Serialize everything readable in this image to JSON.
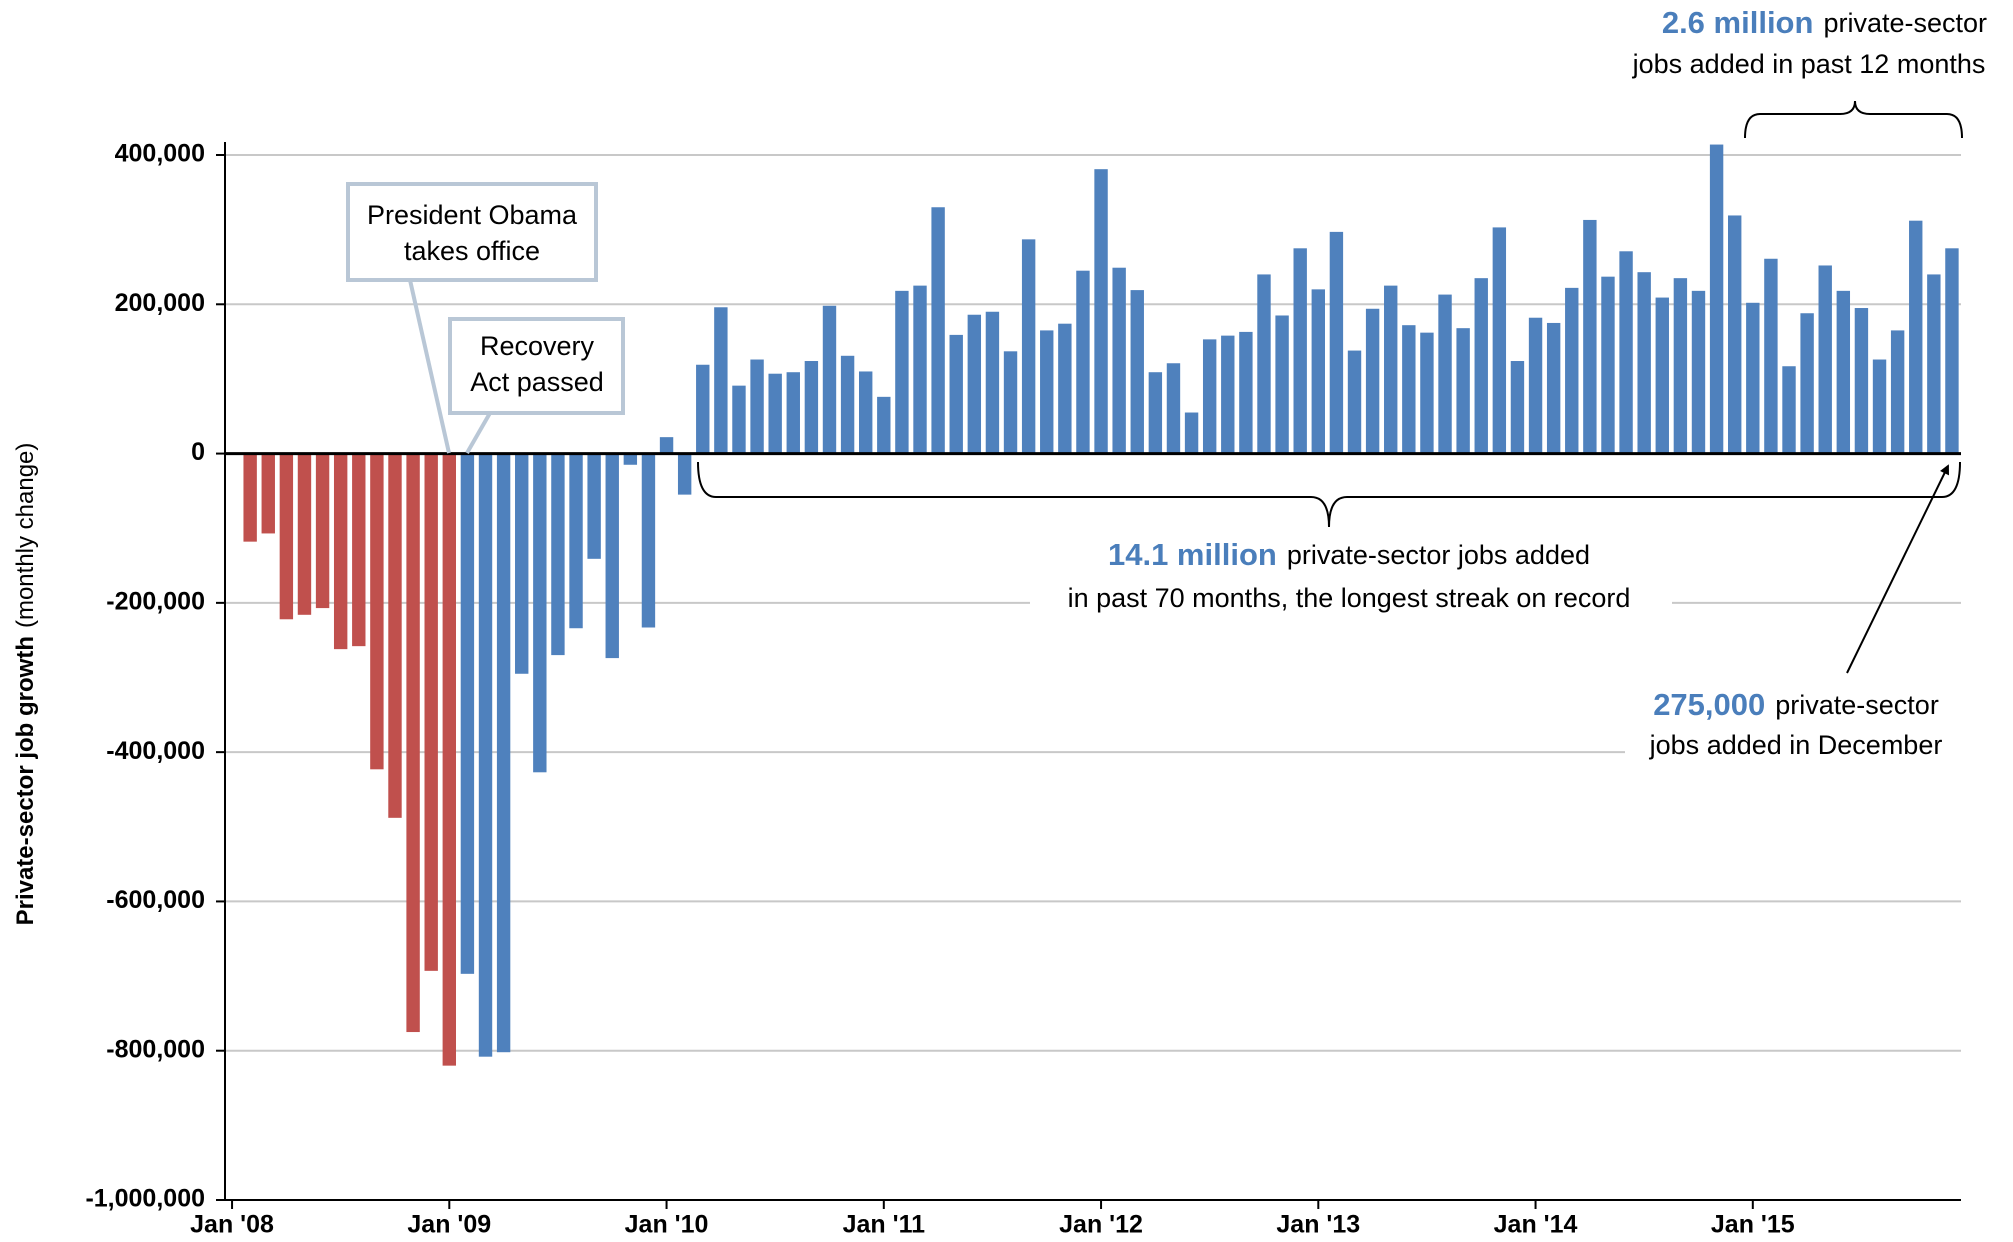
{
  "chart_data": {
    "type": "bar",
    "y_label": "Private-sector job growth",
    "y_label_note": "(monthly change)",
    "categories": [
      "Jan '08",
      null,
      null,
      null,
      null,
      null,
      null,
      null,
      null,
      null,
      null,
      null,
      "Jan '09",
      null,
      null,
      null,
      null,
      null,
      null,
      null,
      null,
      null,
      null,
      null,
      "Jan '10",
      null,
      null,
      null,
      null,
      null,
      null,
      null,
      null,
      null,
      null,
      null,
      "Jan '11",
      null,
      null,
      null,
      null,
      null,
      null,
      null,
      null,
      null,
      null,
      null,
      "Jan '12",
      null,
      null,
      null,
      null,
      null,
      null,
      null,
      null,
      null,
      null,
      null,
      "Jan '13",
      null,
      null,
      null,
      null,
      null,
      null,
      null,
      null,
      null,
      null,
      null,
      "Jan '14",
      null,
      null,
      null,
      null,
      null,
      null,
      null,
      null,
      null,
      null,
      null,
      "Jan '15",
      null,
      null,
      null,
      null,
      null,
      null,
      null,
      null,
      null,
      null,
      null
    ],
    "values": [
      null,
      -118000,
      -107000,
      -222000,
      -216000,
      -207000,
      -262000,
      -258000,
      -423000,
      -488000,
      -775000,
      -693000,
      -820000,
      -697000,
      -808000,
      -802000,
      -295000,
      -427000,
      -270000,
      -234000,
      -141000,
      -274000,
      -15000,
      -233000,
      22000,
      -55000,
      119000,
      196000,
      91000,
      126000,
      107000,
      109000,
      124000,
      198000,
      131000,
      110000,
      76000,
      218000,
      225000,
      330000,
      159000,
      186000,
      190000,
      137000,
      287000,
      165000,
      174000,
      245000,
      381000,
      249000,
      219000,
      109000,
      121000,
      55000,
      153000,
      158000,
      163000,
      240000,
      185000,
      275000,
      220000,
      297000,
      138000,
      194000,
      225000,
      172000,
      162000,
      213000,
      168000,
      235000,
      303000,
      124000,
      182000,
      175000,
      222000,
      313000,
      237000,
      271000,
      243000,
      209000,
      235000,
      218000,
      414000,
      319000,
      202000,
      261000,
      117000,
      188000,
      252000,
      218000,
      195000,
      126000,
      165000,
      312000,
      240000,
      275000
    ],
    "colors": [
      "#c0504d",
      "#c0504d",
      "#c0504d",
      "#c0504d",
      "#c0504d",
      "#c0504d",
      "#c0504d",
      "#c0504d",
      "#c0504d",
      "#c0504d",
      "#c0504d",
      "#c0504d",
      "#c0504d",
      "#4f81bd",
      "#4f81bd",
      "#4f81bd",
      "#4f81bd",
      "#4f81bd",
      "#4f81bd",
      "#4f81bd",
      "#4f81bd",
      "#4f81bd",
      "#4f81bd",
      "#4f81bd",
      "#4f81bd",
      "#4f81bd",
      "#4f81bd",
      "#4f81bd",
      "#4f81bd",
      "#4f81bd",
      "#4f81bd",
      "#4f81bd",
      "#4f81bd",
      "#4f81bd",
      "#4f81bd",
      "#4f81bd",
      "#4f81bd",
      "#4f81bd",
      "#4f81bd",
      "#4f81bd",
      "#4f81bd",
      "#4f81bd",
      "#4f81bd",
      "#4f81bd",
      "#4f81bd",
      "#4f81bd",
      "#4f81bd",
      "#4f81bd",
      "#4f81bd",
      "#4f81bd",
      "#4f81bd",
      "#4f81bd",
      "#4f81bd",
      "#4f81bd",
      "#4f81bd",
      "#4f81bd",
      "#4f81bd",
      "#4f81bd",
      "#4f81bd",
      "#4f81bd",
      "#4f81bd",
      "#4f81bd",
      "#4f81bd",
      "#4f81bd",
      "#4f81bd",
      "#4f81bd",
      "#4f81bd",
      "#4f81bd",
      "#4f81bd",
      "#4f81bd",
      "#4f81bd",
      "#4f81bd",
      "#4f81bd",
      "#4f81bd",
      "#4f81bd",
      "#4f81bd",
      "#4f81bd",
      "#4f81bd",
      "#4f81bd",
      "#4f81bd",
      "#4f81bd",
      "#4f81bd",
      "#4f81bd",
      "#4f81bd",
      "#4f81bd",
      "#4f81bd",
      "#4f81bd",
      "#4f81bd",
      "#4f81bd",
      "#4f81bd",
      "#4f81bd",
      "#4f81bd",
      "#4f81bd",
      "#4f81bd",
      "#4f81bd",
      "#4f81bd"
    ],
    "ylim": [
      -1000000,
      400000
    ],
    "yticks": [
      {
        "value": -1000000,
        "label": "-1,000,000"
      },
      {
        "value": -800000,
        "label": "-800,000"
      },
      {
        "value": -600000,
        "label": "-600,000"
      },
      {
        "value": -400000,
        "label": "-400,000"
      },
      {
        "value": -200000,
        "label": "-200,000"
      },
      0,
      {
        "value": 200000,
        "label": "200,000"
      },
      {
        "value": 400000,
        "label": "400,000"
      }
    ],
    "grid": true,
    "annotations": {
      "obama": [
        "President Obama",
        "takes office"
      ],
      "recovery": [
        "Recovery",
        "Act passed"
      ],
      "year": {
        "highlight": "2.6 million",
        "text": "private-sector",
        "line2": "jobs added in past 12 months"
      },
      "streak": {
        "highlight": "14.1 million",
        "text": "private-sector jobs added",
        "line2": "in past 70 months, the longest streak on record"
      },
      "december": {
        "highlight": "275,000",
        "text": "private-sector",
        "line2": "jobs added in December"
      }
    }
  }
}
